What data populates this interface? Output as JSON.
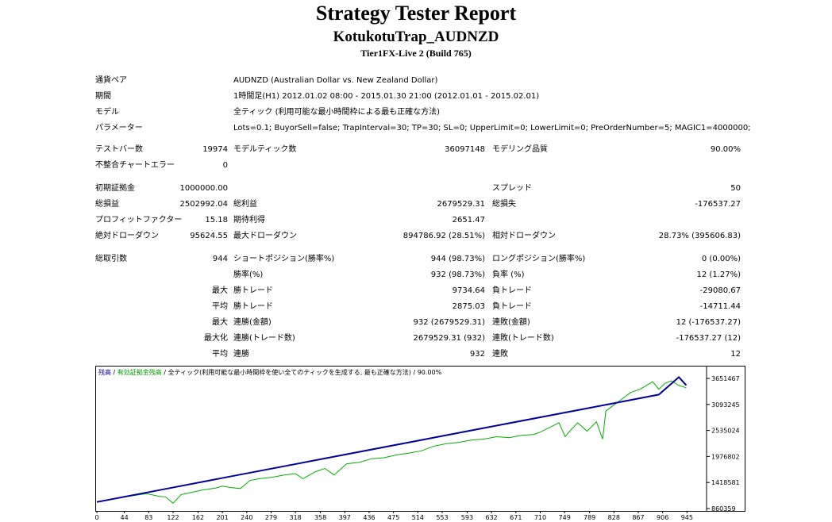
{
  "header": {
    "title": "Strategy Tester Report",
    "ea_name": "KotukotuTrap_AUDNZD",
    "server": "Tier1FX-Live 2 (Build 765)"
  },
  "settings": [
    {
      "label": "通貨ペア",
      "value": "AUDNZD (Australian Dollar vs. New Zealand Dollar)"
    },
    {
      "label": "期間",
      "value": "1時間足(H1) 2012.01.02 08:00 - 2015.01.30 21:00 (2012.01.01 - 2015.02.01)"
    },
    {
      "label": "モデル",
      "value": "全ティック (利用可能な最小時間枠による最も正確な方法)"
    },
    {
      "label": "パラメーター",
      "value": "Lots=0.1; BuyorSell=false; TrapInterval=30; TP=30; SL=0; UpperLimit=0; LowerLimit=0; PreOrderNumber=5; MAGIC1=4000000;"
    }
  ],
  "stats": {
    "bars_label": "テストバー数",
    "bars": "19974",
    "ticks_label": "モデルティック数",
    "ticks": "36097148",
    "quality_label": "モデリング品質",
    "quality": "90.00%",
    "mismatch_label": "不整合チャートエラー",
    "mismatch": "0",
    "deposit_label": "初期証拠金",
    "deposit": "1000000.00",
    "spread_label": "スプレッド",
    "spread": "50",
    "net_label": "総損益",
    "net": "2502992.04",
    "gross_profit_label": "総利益",
    "gross_profit": "2679529.31",
    "gross_loss_label": "総損失",
    "gross_loss": "-176537.27",
    "pf_label": "プロフィットファクター",
    "pf": "15.18",
    "expected_label": "期待利得",
    "expected": "2651.47",
    "abs_dd_label": "絶対ドローダウン",
    "abs_dd": "95624.55",
    "max_dd_label": "最大ドローダウン",
    "max_dd": "894786.92 (28.51%)",
    "rel_dd_label": "相対ドローダウン",
    "rel_dd": "28.73% (395606.83)",
    "trades_label": "総取引数",
    "trades": "944",
    "short_label": "ショートポジション(勝率%)",
    "short": "944 (98.73%)",
    "long_label": "ロングポジション(勝率%)",
    "long": "0 (0.00%)",
    "win_label": "勝率(%)",
    "win": "932 (98.73%)",
    "loss_label": "負率 (%)",
    "loss": "12 (1.27%)",
    "max_word": "最大",
    "best_label": "勝トレード",
    "best": "9734.64",
    "worst_label": "負トレード",
    "worst": "-29080.67",
    "avg_word": "平均",
    "avg_win_label": "勝トレード",
    "avg_win": "2875.03",
    "avg_loss_label": "負トレード",
    "avg_loss": "-14711.44",
    "cons_win_money_label": "連勝(金額)",
    "cons_win_money": "932 (2679529.31)",
    "cons_loss_money_label": "連敗(金額)",
    "cons_loss_money": "12 (-176537.27)",
    "maximal_word": "最大化",
    "max_cons_profit_label": "連勝(トレード数)",
    "max_cons_profit": "2679529.31 (932)",
    "max_cons_loss_label": "連敗(トレード数)",
    "max_cons_loss": "-176537.27 (12)",
    "avg_cons_win_label": "連勝",
    "avg_cons_win": "932",
    "avg_cons_loss_label": "連敗",
    "avg_cons_loss": "12"
  },
  "chart_header": {
    "balance": "残高",
    "sep1": " / ",
    "equity": "有効証拠金残高",
    "sep2": " / ",
    "rest": "全ティック(利用可能な最小時間枠を使い全てのティックを生成する, 最も正確な方法) / 90.00%"
  },
  "chart_data": {
    "type": "line",
    "x_ticks": [
      "0",
      "44",
      "83",
      "122",
      "162",
      "201",
      "240",
      "279",
      "318",
      "358",
      "397",
      "436",
      "475",
      "514",
      "553",
      "593",
      "632",
      "671",
      "710",
      "749",
      "789",
      "828",
      "867",
      "906",
      "945"
    ],
    "y_ticks": [
      "3651467",
      "3093245",
      "2535024",
      "1976802",
      "1418581",
      "860359"
    ],
    "ylim": [
      860359,
      3651467
    ],
    "xlim": [
      0,
      970
    ],
    "series": [
      {
        "name": "残高",
        "color": "#00009c",
        "x": [
          0,
          100,
          200,
          300,
          400,
          500,
          600,
          700,
          800,
          900,
          932,
          944
        ],
        "y": [
          1000000,
          1256000,
          1512000,
          1768000,
          2024000,
          2280000,
          2536000,
          2792000,
          3048000,
          3304000,
          3679529,
          3502992
        ]
      },
      {
        "name": "有効証拠金残高",
        "color": "#00b000",
        "x": [
          0,
          40,
          80,
          100,
          110,
          122,
          135,
          150,
          170,
          190,
          201,
          215,
          230,
          245,
          260,
          280,
          300,
          318,
          330,
          350,
          365,
          380,
          400,
          420,
          440,
          460,
          480,
          500,
          520,
          540,
          560,
          580,
          600,
          620,
          640,
          660,
          680,
          700,
          710,
          725,
          740,
          750,
          760,
          770,
          785,
          800,
          810,
          815,
          825,
          840,
          855,
          870,
          880,
          890,
          900,
          910,
          920,
          932,
          944
        ],
        "y": [
          1000000,
          1100000,
          1180000,
          1120000,
          1110000,
          975000,
          1160000,
          1200000,
          1260000,
          1300000,
          1340000,
          1310000,
          1290000,
          1460000,
          1500000,
          1530000,
          1580000,
          1610000,
          1500000,
          1650000,
          1720000,
          1580000,
          1820000,
          1850000,
          1930000,
          1950000,
          2010000,
          2050000,
          2100000,
          2200000,
          2250000,
          2280000,
          2330000,
          2350000,
          2400000,
          2380000,
          2430000,
          2450000,
          2500000,
          2600000,
          2700000,
          2400000,
          2560000,
          2700000,
          2520000,
          2720000,
          2350000,
          2950000,
          3050000,
          3200000,
          3350000,
          3420000,
          3500000,
          3580000,
          3420000,
          3550000,
          3600000,
          3500000,
          3450000
        ]
      }
    ]
  }
}
